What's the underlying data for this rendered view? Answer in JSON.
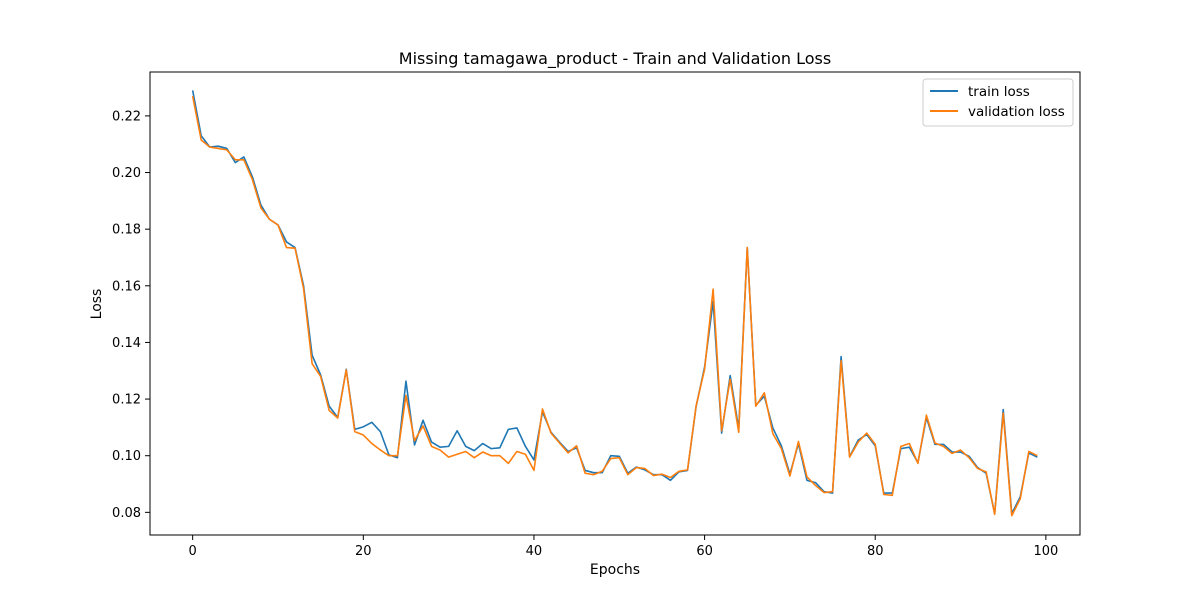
{
  "chart_data": {
    "type": "line",
    "title": "Missing tamagawa_product - Train and Validation Loss",
    "xlabel": "Epochs",
    "ylabel": "Loss",
    "xlim": [
      -5.0,
      104.0
    ],
    "ylim": [
      0.072,
      0.2355
    ],
    "xticks": [
      0,
      20,
      40,
      60,
      80,
      100
    ],
    "yticks": [
      0.08,
      0.1,
      0.12,
      0.14,
      0.16,
      0.18,
      0.2,
      0.22
    ],
    "legend_position": "top-right",
    "x": [
      0,
      1,
      2,
      3,
      4,
      5,
      6,
      7,
      8,
      9,
      10,
      11,
      12,
      13,
      14,
      15,
      16,
      17,
      18,
      19,
      20,
      21,
      22,
      23,
      24,
      25,
      26,
      27,
      28,
      29,
      30,
      31,
      32,
      33,
      34,
      35,
      36,
      37,
      38,
      39,
      40,
      41,
      42,
      43,
      44,
      45,
      46,
      47,
      48,
      49,
      50,
      51,
      52,
      53,
      54,
      55,
      56,
      57,
      58,
      59,
      60,
      61,
      62,
      63,
      64,
      65,
      66,
      67,
      68,
      69,
      70,
      71,
      72,
      73,
      74,
      75,
      76,
      77,
      78,
      79,
      80,
      81,
      82,
      83,
      84,
      85,
      86,
      87,
      88,
      89,
      90,
      91,
      92,
      93,
      94,
      95,
      96,
      97,
      98,
      99
    ],
    "series": [
      {
        "name": "train loss",
        "color": "#1f77b4",
        "values": [
          0.229,
          0.213,
          0.209,
          0.2093,
          0.2085,
          0.2035,
          0.2055,
          0.1985,
          0.1885,
          0.1835,
          0.1815,
          0.1755,
          0.1735,
          0.16,
          0.1355,
          0.1285,
          0.1175,
          0.1135,
          0.1305,
          0.1093,
          0.1102,
          0.1118,
          0.1085,
          0.1003,
          0.0993,
          0.1263,
          0.1038,
          0.1125,
          0.1048,
          0.103,
          0.1033,
          0.1088,
          0.1033,
          0.1018,
          0.1043,
          0.1025,
          0.1028,
          0.1093,
          0.1098,
          0.1033,
          0.0985,
          0.1155,
          0.1083,
          0.1048,
          0.1015,
          0.1028,
          0.0948,
          0.094,
          0.094,
          0.1,
          0.0998,
          0.0938,
          0.096,
          0.095,
          0.0933,
          0.0933,
          0.0913,
          0.0943,
          0.0948,
          0.1173,
          0.1313,
          0.1545,
          0.108,
          0.1283,
          0.1095,
          0.1735,
          0.1178,
          0.121,
          0.1098,
          0.1035,
          0.0935,
          0.1043,
          0.0913,
          0.0905,
          0.0873,
          0.0868,
          0.135,
          0.0997,
          0.1055,
          0.1075,
          0.1035,
          0.0868,
          0.0868,
          0.1025,
          0.103,
          0.0975,
          0.1135,
          0.104,
          0.104,
          0.1013,
          0.1013,
          0.0998,
          0.0958,
          0.0938,
          0.0795,
          0.1163,
          0.0795,
          0.0855,
          0.101,
          0.0995
        ]
      },
      {
        "name": "validation loss",
        "color": "#ff7f0e",
        "values": [
          0.227,
          0.2115,
          0.209,
          0.2085,
          0.208,
          0.2045,
          0.2045,
          0.1975,
          0.1875,
          0.1835,
          0.1815,
          0.1735,
          0.1733,
          0.159,
          0.1325,
          0.128,
          0.116,
          0.1133,
          0.1303,
          0.1085,
          0.1073,
          0.1043,
          0.102,
          0.1,
          0.1,
          0.1213,
          0.1053,
          0.1105,
          0.1033,
          0.102,
          0.0995,
          0.1005,
          0.1015,
          0.0993,
          0.1013,
          0.1,
          0.1,
          0.0973,
          0.1015,
          0.1005,
          0.0948,
          0.1165,
          0.108,
          0.1045,
          0.101,
          0.1035,
          0.0938,
          0.0933,
          0.0945,
          0.099,
          0.0993,
          0.0933,
          0.0958,
          0.0955,
          0.093,
          0.0935,
          0.0923,
          0.0945,
          0.095,
          0.1175,
          0.1305,
          0.1588,
          0.1088,
          0.127,
          0.1083,
          0.1735,
          0.1175,
          0.1222,
          0.1078,
          0.1025,
          0.0928,
          0.105,
          0.0925,
          0.0895,
          0.087,
          0.0873,
          0.1335,
          0.0995,
          0.1048,
          0.108,
          0.104,
          0.0863,
          0.086,
          0.1033,
          0.1043,
          0.0973,
          0.1143,
          0.1045,
          0.1033,
          0.1008,
          0.102,
          0.0993,
          0.0955,
          0.0943,
          0.0793,
          0.115,
          0.0788,
          0.0848,
          0.1015,
          0.1
        ]
      }
    ]
  }
}
